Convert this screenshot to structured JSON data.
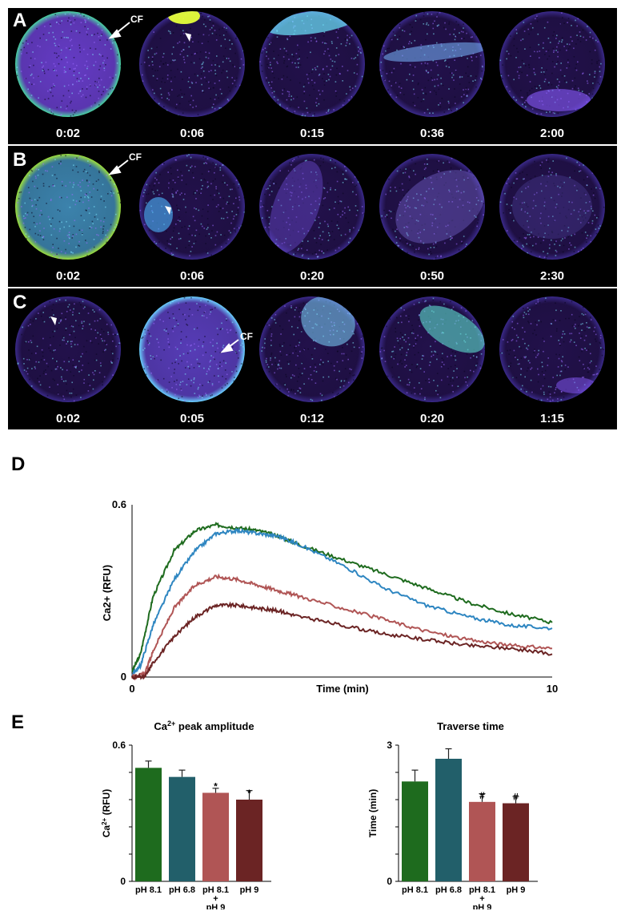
{
  "panels": [
    {
      "letter": "A",
      "times": [
        "0:02",
        "0:06",
        "0:15",
        "0:36",
        "2:00"
      ],
      "cf_label": "CF"
    },
    {
      "letter": "B",
      "times": [
        "0:02",
        "0:06",
        "0:20",
        "0:50",
        "2:30"
      ],
      "cf_label": "CF"
    },
    {
      "letter": "C",
      "times": [
        "0:02",
        "0:05",
        "0:12",
        "0:20",
        "1:15"
      ],
      "cf_label": "CF"
    }
  ],
  "panel_d_letter": "D",
  "panel_e_letter": "E",
  "colors": {
    "pH 8.1": "#1e6b1e",
    "pH 6.8": "#2e86c1",
    "pH 8.1 + pH 9": "#b05555",
    "pH 9": "#6b2424",
    "bar_pH_6.8": "#225f6a"
  },
  "chart_data": [
    {
      "type": "line",
      "xlabel": "Time (min)",
      "ylabel": "Ca2+ (RFU)",
      "xlim": [
        0,
        10
      ],
      "ylim": [
        0,
        0.6
      ],
      "x_ticks": [
        "0",
        "10"
      ],
      "y_ticks": [
        "0",
        "0.6"
      ],
      "grid": false,
      "series": [
        {
          "color": "#1e6b1e",
          "x": [
            0,
            0.2,
            0.5,
            1,
            1.5,
            2,
            2.5,
            3,
            3.5,
            4,
            5,
            6,
            7,
            8,
            9,
            10
          ],
          "y": [
            0.02,
            0.08,
            0.28,
            0.44,
            0.51,
            0.53,
            0.52,
            0.51,
            0.49,
            0.46,
            0.41,
            0.36,
            0.31,
            0.26,
            0.22,
            0.19
          ]
        },
        {
          "color": "#2e86c1",
          "x": [
            0,
            0.2,
            0.5,
            1,
            1.5,
            2,
            2.5,
            3,
            3.5,
            4,
            5,
            6,
            7,
            8,
            9,
            10
          ],
          "y": [
            0.01,
            0.04,
            0.18,
            0.34,
            0.44,
            0.5,
            0.51,
            0.5,
            0.49,
            0.46,
            0.39,
            0.31,
            0.25,
            0.21,
            0.18,
            0.17
          ]
        },
        {
          "color": "#b05555",
          "x": [
            0,
            0.3,
            0.5,
            1,
            1.5,
            2,
            2.5,
            3,
            3.5,
            4,
            5,
            6,
            7,
            8,
            9,
            10
          ],
          "y": [
            0.0,
            0.01,
            0.09,
            0.24,
            0.32,
            0.35,
            0.34,
            0.32,
            0.3,
            0.28,
            0.24,
            0.2,
            0.16,
            0.13,
            0.11,
            0.1
          ]
        },
        {
          "color": "#6b2424",
          "x": [
            0,
            0.3,
            0.5,
            1,
            1.5,
            2,
            2.5,
            3,
            3.5,
            4,
            5,
            6,
            7,
            8,
            9,
            10
          ],
          "y": [
            0.0,
            0.0,
            0.05,
            0.14,
            0.21,
            0.25,
            0.25,
            0.24,
            0.23,
            0.21,
            0.18,
            0.15,
            0.13,
            0.11,
            0.1,
            0.08
          ]
        }
      ]
    },
    {
      "type": "bar",
      "title": "Ca2+ peak amplitude",
      "ylabel": "Ca2+ (RFU)",
      "ylim": [
        0,
        0.6
      ],
      "y_ticks": [
        "0",
        "0.6"
      ],
      "categories": [
        "pH 8.1",
        "pH 6.8",
        "pH 8.1 + pH 9",
        "pH 9"
      ],
      "values": [
        0.5,
        0.46,
        0.39,
        0.36
      ],
      "errors": [
        0.03,
        0.03,
        0.02,
        0.04
      ],
      "annotations": [
        "",
        "",
        "*",
        "*"
      ]
    },
    {
      "type": "bar",
      "title": "Traverse time",
      "ylabel": "Time (min)",
      "ylim": [
        0,
        3
      ],
      "y_ticks": [
        "0",
        "3"
      ],
      "categories": [
        "pH 8.1",
        "pH 6.8",
        "pH 8.1 + pH 9",
        "pH 9"
      ],
      "values": [
        2.2,
        2.7,
        1.75,
        1.72
      ],
      "errors": [
        0.25,
        0.22,
        0.18,
        0.15
      ],
      "annotations": [
        "",
        "",
        "#",
        "#"
      ]
    }
  ]
}
